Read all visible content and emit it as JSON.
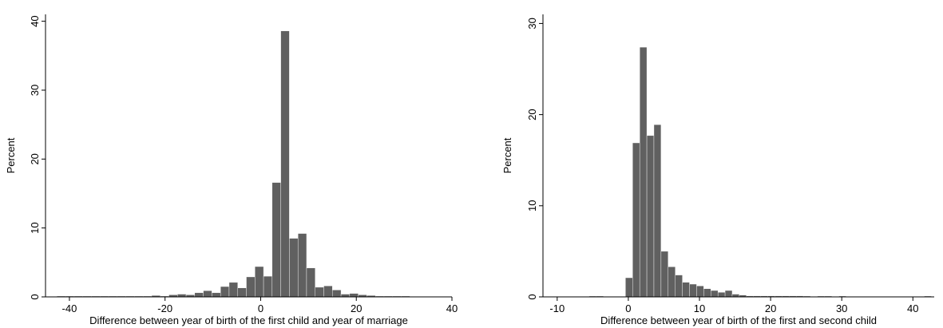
{
  "chart_data": [
    {
      "type": "bar",
      "xlabel": "Difference between year of birth of the first child and year of marriage",
      "ylabel": "Percent",
      "xlim": [
        -45,
        40
      ],
      "ylim": [
        0,
        41
      ],
      "xticks": [
        -40,
        -20,
        0,
        20,
        40
      ],
      "yticks": [
        0,
        10,
        20,
        30,
        40
      ],
      "bin_width": 1.8,
      "bar_color": "#606060",
      "grid": false,
      "bins": [
        {
          "start": -42.6,
          "value": 0.1
        },
        {
          "start": -40.8,
          "value": 0.1
        },
        {
          "start": -39.0,
          "value": 0.1
        },
        {
          "start": -37.2,
          "value": 0.1
        },
        {
          "start": -35.4,
          "value": 0.1
        },
        {
          "start": -33.6,
          "value": 0.1
        },
        {
          "start": -31.8,
          "value": 0.1
        },
        {
          "start": -30.0,
          "value": 0.1
        },
        {
          "start": -28.2,
          "value": 0.1
        },
        {
          "start": -26.4,
          "value": 0.1
        },
        {
          "start": -24.6,
          "value": 0.1
        },
        {
          "start": -22.8,
          "value": 0.2
        },
        {
          "start": -21.0,
          "value": 0.1
        },
        {
          "start": -19.2,
          "value": 0.3
        },
        {
          "start": -17.4,
          "value": 0.4
        },
        {
          "start": -15.6,
          "value": 0.3
        },
        {
          "start": -13.8,
          "value": 0.6
        },
        {
          "start": -12.0,
          "value": 0.9
        },
        {
          "start": -10.2,
          "value": 0.6
        },
        {
          "start": -8.4,
          "value": 1.5
        },
        {
          "start": -6.6,
          "value": 2.1
        },
        {
          "start": -4.8,
          "value": 1.3
        },
        {
          "start": -3.0,
          "value": 2.9
        },
        {
          "start": -1.2,
          "value": 4.4
        },
        {
          "start": 0.6,
          "value": 3.0
        },
        {
          "start": 2.4,
          "value": 16.6
        },
        {
          "start": 4.2,
          "value": 38.6
        },
        {
          "start": 6.0,
          "value": 8.5
        },
        {
          "start": 7.8,
          "value": 9.2
        },
        {
          "start": 9.6,
          "value": 4.2
        },
        {
          "start": 11.4,
          "value": 1.4
        },
        {
          "start": 13.2,
          "value": 1.6
        },
        {
          "start": 15.0,
          "value": 1.0
        },
        {
          "start": 16.8,
          "value": 0.4
        },
        {
          "start": 18.6,
          "value": 0.5
        },
        {
          "start": 20.4,
          "value": 0.3
        },
        {
          "start": 22.2,
          "value": 0.2
        },
        {
          "start": 24.0,
          "value": 0.1
        },
        {
          "start": 25.8,
          "value": 0.1
        },
        {
          "start": 27.6,
          "value": 0.1
        },
        {
          "start": 29.4,
          "value": 0.1
        }
      ]
    },
    {
      "type": "bar",
      "xlabel": "Difference between year of birth of the first and second child",
      "ylabel": "Percent",
      "xlim": [
        -12,
        43
      ],
      "ylim": [
        0,
        31
      ],
      "xticks": [
        -10,
        0,
        10,
        20,
        30,
        40
      ],
      "yticks": [
        0,
        10,
        20,
        30
      ],
      "bin_width": 1.0,
      "bar_color": "#606060",
      "grid": false,
      "bins": [
        {
          "start": -5.5,
          "value": 0.05
        },
        {
          "start": -4.5,
          "value": 0.05
        },
        {
          "start": -0.4,
          "value": 2.1
        },
        {
          "start": 0.6,
          "value": 16.9
        },
        {
          "start": 1.6,
          "value": 27.4
        },
        {
          "start": 2.6,
          "value": 17.7
        },
        {
          "start": 3.6,
          "value": 18.9
        },
        {
          "start": 4.6,
          "value": 5.0
        },
        {
          "start": 5.6,
          "value": 3.3
        },
        {
          "start": 6.6,
          "value": 2.4
        },
        {
          "start": 7.6,
          "value": 1.6
        },
        {
          "start": 8.6,
          "value": 1.4
        },
        {
          "start": 9.6,
          "value": 1.2
        },
        {
          "start": 10.6,
          "value": 0.9
        },
        {
          "start": 11.6,
          "value": 0.7
        },
        {
          "start": 12.6,
          "value": 0.5
        },
        {
          "start": 13.6,
          "value": 0.7
        },
        {
          "start": 14.6,
          "value": 0.3
        },
        {
          "start": 15.6,
          "value": 0.2
        },
        {
          "start": 16.6,
          "value": 0.1
        },
        {
          "start": 17.6,
          "value": 0.1
        },
        {
          "start": 18.6,
          "value": 0.1
        },
        {
          "start": 19.6,
          "value": 0.1
        },
        {
          "start": 20.6,
          "value": 0.1
        },
        {
          "start": 21.6,
          "value": 0.1
        },
        {
          "start": 22.6,
          "value": 0.1
        },
        {
          "start": 23.6,
          "value": 0.1
        },
        {
          "start": 24.6,
          "value": 0.05
        },
        {
          "start": 26.6,
          "value": 0.05
        },
        {
          "start": 27.6,
          "value": 0.05
        },
        {
          "start": 29.6,
          "value": 0.05
        },
        {
          "start": 41.6,
          "value": 0.05
        }
      ]
    }
  ]
}
